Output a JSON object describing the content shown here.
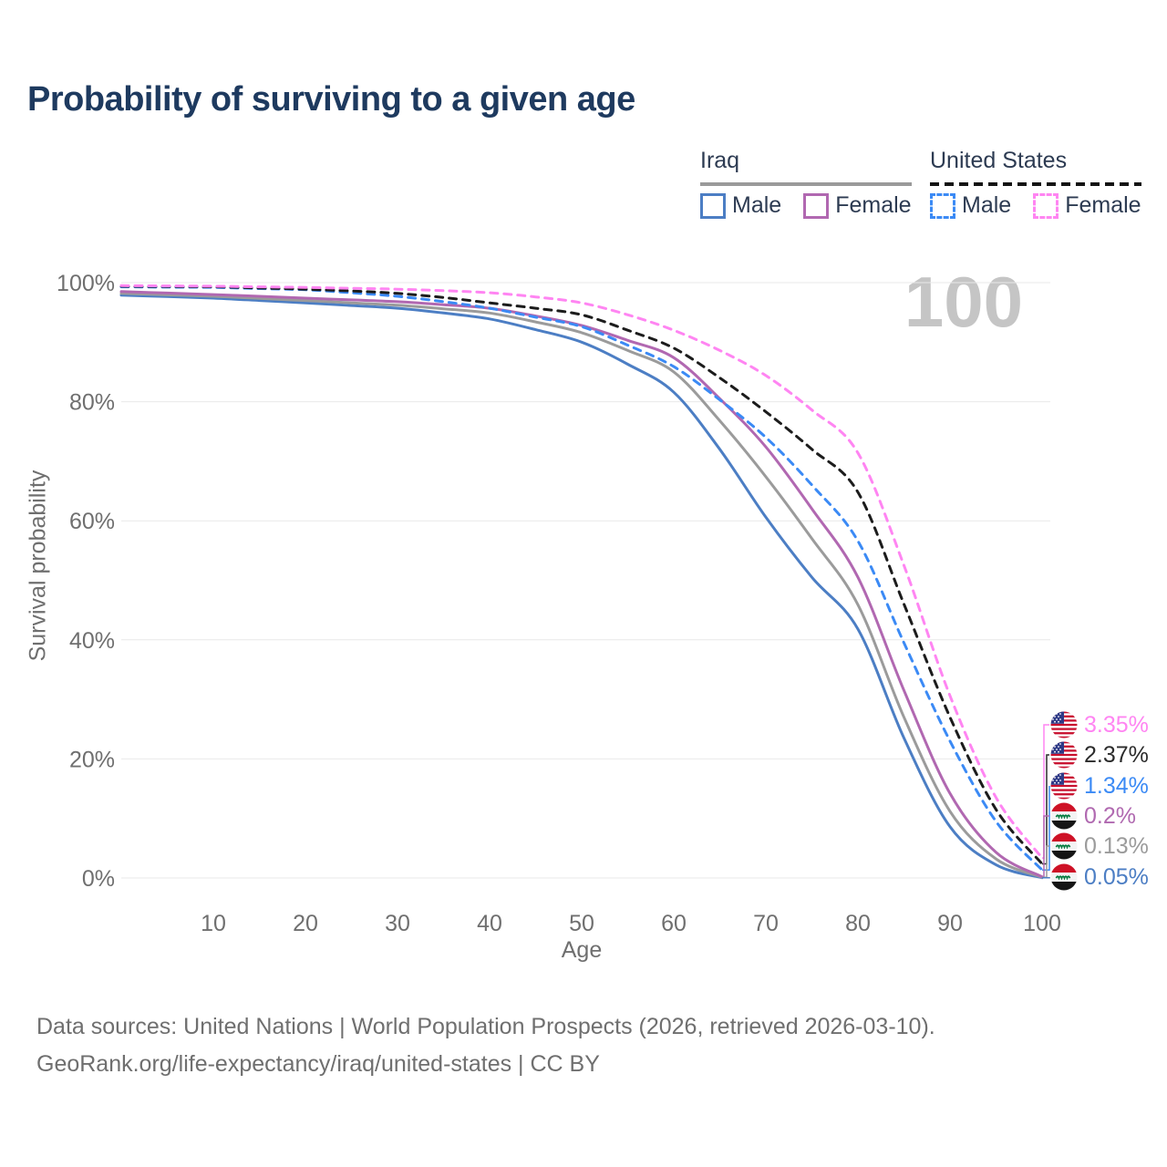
{
  "title": "Probability of surviving to a given age",
  "watermark": "100",
  "legend": {
    "groups": [
      {
        "label": "Iraq",
        "line_style": "solid",
        "underline_color": "#9a9a9a",
        "items": [
          {
            "label": "Male",
            "color": "#4c7ec4",
            "dashed": false
          },
          {
            "label": "Female",
            "color": "#b168b1",
            "dashed": false
          }
        ]
      },
      {
        "label": "United States",
        "line_style": "dashed",
        "underline_color": "#141414",
        "items": [
          {
            "label": "Male",
            "color": "#3b8af5",
            "dashed": true
          },
          {
            "label": "Female",
            "color": "#ff85f2",
            "dashed": true
          }
        ]
      }
    ]
  },
  "chart_data": {
    "type": "line",
    "title": "Probability of surviving to a given age",
    "xlabel": "Age",
    "ylabel": "Survival probability",
    "xlim": [
      0,
      100
    ],
    "ylim": [
      0,
      100
    ],
    "grid": "horizontal",
    "legend_position": "top-right",
    "xticks": [
      10,
      20,
      30,
      40,
      50,
      60,
      70,
      80,
      90,
      100
    ],
    "yticks": [
      0,
      20,
      40,
      60,
      80,
      100
    ],
    "ytick_labels": [
      "0%",
      "20%",
      "40%",
      "60%",
      "80%",
      "100%"
    ],
    "x": [
      0,
      5,
      10,
      15,
      20,
      25,
      30,
      35,
      40,
      45,
      50,
      55,
      60,
      65,
      70,
      75,
      80,
      85,
      90,
      95,
      100
    ],
    "series": [
      {
        "name": "Iraq Male",
        "country": "iraq",
        "color": "#4c7ec4",
        "dashed": false,
        "values": [
          97.9,
          97.65,
          97.4,
          97.0,
          96.6,
          96.15,
          95.7,
          94.9,
          93.9,
          92.1,
          90.0,
          86.3,
          81.6,
          72.0,
          60.6,
          50.5,
          41.8,
          23.5,
          8.6,
          2.2,
          0.05
        ]
      },
      {
        "name": "Iraq Both sexes",
        "country": "iraq",
        "color": "#9b9b9b",
        "dashed": false,
        "values": [
          98.2,
          97.95,
          97.7,
          97.35,
          97.0,
          96.6,
          96.2,
          95.6,
          94.9,
          93.4,
          91.6,
          88.6,
          85.0,
          76.8,
          67.4,
          57.0,
          45.9,
          27.0,
          11.2,
          3.2,
          0.13
        ]
      },
      {
        "name": "Iraq Female",
        "country": "iraq",
        "color": "#b168b1",
        "dashed": false,
        "values": [
          98.5,
          98.25,
          98.0,
          97.7,
          97.4,
          97.1,
          96.8,
          96.3,
          95.7,
          94.4,
          92.8,
          90.3,
          87.4,
          80.5,
          72.4,
          62.0,
          50.5,
          31.5,
          14.2,
          4.3,
          0.2
        ]
      },
      {
        "name": "United States Male",
        "country": "us",
        "color": "#3b8af5",
        "dashed": true,
        "values": [
          99.3,
          99.25,
          99.2,
          99.0,
          98.8,
          98.3,
          97.7,
          96.8,
          95.7,
          94.2,
          92.6,
          89.5,
          85.9,
          80.3,
          74.0,
          66.0,
          56.6,
          39.5,
          23.0,
          9.5,
          1.34
        ]
      },
      {
        "name": "United States Both sexes",
        "country": "us",
        "color": "#1c1c1c",
        "dashed": true,
        "values": [
          99.4,
          99.35,
          99.3,
          99.1,
          98.9,
          98.6,
          98.2,
          97.5,
          96.6,
          95.7,
          94.6,
          92.0,
          89.0,
          84.0,
          78.3,
          72.0,
          64.8,
          46.0,
          27.0,
          11.5,
          2.37
        ]
      },
      {
        "name": "United States Female",
        "country": "us",
        "color": "#ff85f2",
        "dashed": true,
        "values": [
          99.5,
          99.45,
          99.4,
          99.3,
          99.2,
          99.05,
          98.9,
          98.65,
          98.3,
          97.6,
          96.6,
          94.6,
          92.0,
          88.6,
          84.4,
          78.6,
          71.4,
          52.5,
          30.6,
          13.5,
          3.35
        ]
      }
    ]
  },
  "end_labels": [
    {
      "flag": "us",
      "series": "United States Female",
      "value": "3.35%",
      "pct": 3.35,
      "color": "#ff85f2"
    },
    {
      "flag": "us",
      "series": "United States Both sexes",
      "value": "2.37%",
      "pct": 2.37,
      "color": "#2b2b2b"
    },
    {
      "flag": "us",
      "series": "United States Male",
      "value": "1.34%",
      "pct": 1.34,
      "color": "#3b8af5"
    },
    {
      "flag": "iraq",
      "series": "Iraq Female",
      "value": "0.2%",
      "pct": 0.2,
      "color": "#b069b0"
    },
    {
      "flag": "iraq",
      "series": "Iraq Both sexes",
      "value": "0.13%",
      "pct": 0.13,
      "color": "#9b9b9b"
    },
    {
      "flag": "iraq",
      "series": "Iraq Male",
      "value": "0.05%",
      "pct": 0.05,
      "color": "#4c7ec4"
    }
  ],
  "footer": {
    "line1": "Data sources: United Nations | World Population Prospects (2026, retrieved 2026-03-10).",
    "line2": "GeoRank.org/life-expectancy/iraq/united-states | CC BY"
  }
}
